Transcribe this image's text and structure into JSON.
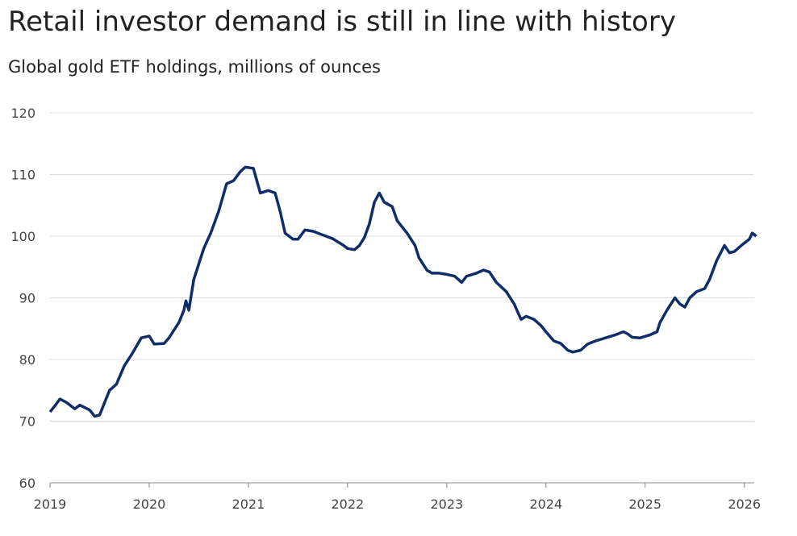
{
  "chart_data": {
    "type": "line",
    "title": "Retail investor demand is still in line with history",
    "subtitle": "Global gold ETF holdings, millions of ounces",
    "x": [
      2019.0,
      2019.05,
      2019.1,
      2019.17,
      2019.25,
      2019.3,
      2019.4,
      2019.45,
      2019.5,
      2019.55,
      2019.6,
      2019.67,
      2019.75,
      2019.83,
      2019.92,
      2020.0,
      2020.05,
      2020.15,
      2020.2,
      2020.3,
      2020.35,
      2020.37,
      2020.4,
      2020.45,
      2020.55,
      2020.62,
      2020.7,
      2020.78,
      2020.85,
      2020.92,
      2020.97,
      2021.05,
      2021.12,
      2021.2,
      2021.27,
      2021.32,
      2021.37,
      2021.45,
      2021.5,
      2021.57,
      2021.65,
      2021.75,
      2021.85,
      2021.95,
      2022.0,
      2022.07,
      2022.12,
      2022.17,
      2022.22,
      2022.27,
      2022.32,
      2022.37,
      2022.45,
      2022.5,
      2022.6,
      2022.68,
      2022.72,
      2022.8,
      2022.85,
      2022.92,
      2023.0,
      2023.08,
      2023.15,
      2023.2,
      2023.3,
      2023.37,
      2023.43,
      2023.5,
      2023.6,
      2023.68,
      2023.72,
      2023.75,
      2023.8,
      2023.88,
      2023.95,
      2024.0,
      2024.08,
      2024.15,
      2024.22,
      2024.27,
      2024.35,
      2024.42,
      2024.5,
      2024.6,
      2024.7,
      2024.78,
      2024.82,
      2024.87,
      2024.95,
      2025.05,
      2025.12,
      2025.15,
      2025.22,
      2025.28,
      2025.3,
      2025.35,
      2025.4,
      2025.45,
      2025.52,
      2025.6,
      2025.65,
      2025.72,
      2025.8,
      2025.85,
      2025.9,
      2025.97,
      2026.05,
      2026.08,
      2026.12
    ],
    "series": [
      {
        "name": "Global gold ETF holdings",
        "color": "#0f2d69",
        "values": [
          71.5,
          72.5,
          73.6,
          73,
          72,
          72.6,
          71.8,
          70.8,
          71,
          73,
          75,
          76,
          79,
          81,
          83.5,
          83.8,
          82.5,
          82.6,
          83.5,
          86,
          88,
          89.5,
          88,
          93,
          98,
          100.5,
          104,
          108.5,
          109,
          110.5,
          111.2,
          111,
          107,
          107.4,
          107,
          104,
          100.5,
          99.5,
          99.5,
          101,
          100.8,
          100.2,
          99.6,
          98.6,
          98,
          97.8,
          98.5,
          99.8,
          102,
          105.5,
          107,
          105.5,
          104.8,
          102.5,
          100.5,
          98.5,
          96.5,
          94.5,
          94,
          94,
          93.8,
          93.5,
          92.5,
          93.5,
          94,
          94.5,
          94.2,
          92.5,
          91,
          89,
          87.5,
          86.5,
          87,
          86.5,
          85.5,
          84.5,
          83,
          82.6,
          81.5,
          81.2,
          81.5,
          82.5,
          83,
          83.5,
          84,
          84.5,
          84.2,
          83.6,
          83.5,
          84,
          84.5,
          86,
          88,
          89.5,
          90,
          89,
          88.5,
          90,
          91,
          91.5,
          93,
          96,
          98.5,
          97.3,
          97.5,
          98.5,
          99.5,
          100.5,
          100
        ]
      }
    ],
    "xlim": [
      2019,
      2026.1
    ],
    "xticks": [
      2019,
      2020,
      2021,
      2022,
      2023,
      2024,
      2025,
      2026
    ],
    "ylim": [
      60,
      120
    ],
    "yticks": [
      60,
      70,
      80,
      90,
      100,
      110,
      120
    ],
    "grid": true
  }
}
